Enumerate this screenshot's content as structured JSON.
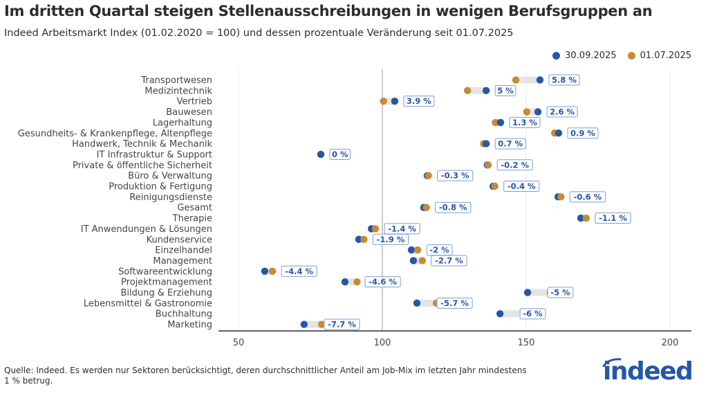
{
  "title": "Im dritten Quartal steigen Stellenausschreibungen in wenigen Berufsgruppen an",
  "subtitle": "Indeed Arbeitsmarkt Index (01.02.2020 = 100) und dessen prozentuale Veränderung seit 01.07.2025",
  "source": "Quelle: Indeed. Es werden nur Sektoren berücksichtigt, deren durchschnittlicher Anteil am Job-Mix im letzten Jahr mindestens 1 % betrug.",
  "logo_text": "indeed",
  "colors": {
    "current": "#2557a7",
    "previous": "#c78a35",
    "connector": "#e4e4e4",
    "refline": "#bdbdbd",
    "grid": "#e8e8e8",
    "axis": "#2d2d2d",
    "label_text": "#2557a7",
    "label_border": "#7d9ccf"
  },
  "chart_data": {
    "type": "dumbbell",
    "title": "Im dritten Quartal steigen Stellenausschreibungen in wenigen Berufsgruppen an",
    "subtitle": "Indeed Arbeitsmarkt Index (01.02.2020 = 100) und dessen prozentuale Veränderung seit 01.07.2025",
    "xlabel": "",
    "ylabel": "",
    "xlim": [
      40,
      208
    ],
    "xticks": [
      50,
      100,
      150,
      200
    ],
    "reference_line": 100,
    "legend_position": "top-right",
    "series": [
      {
        "name": "30.09.2025",
        "key": "current"
      },
      {
        "name": "01.07.2025",
        "key": "previous"
      }
    ],
    "categories": [
      "Transportwesen",
      "Medizintechnik",
      "Vertrieb",
      "Bauwesen",
      "Lagerhaltung",
      "Gesundheits- & Krankenpflege, Altenpflege",
      "Handwerk, Technik & Mechanik",
      "IT Infrastruktur & Support",
      "Private & öffentliche Sicherheit",
      "Büro & Verwaltung",
      "Produktion & Fertigung",
      "Reinigungsdienste",
      "Gesamt",
      "Therapie",
      "IT Anwendungen & Lösungen",
      "Kundenservice",
      "Einzelhandel",
      "Management",
      "Softwareentwicklung",
      "Projektmanagement",
      "Bildung & Erziehung",
      "Lebensmittel & Gastronomie",
      "Buchhaltung",
      "Marketing"
    ],
    "current": [
      154.8,
      136.1,
      104.3,
      154.1,
      141.1,
      161.3,
      136.1,
      78.6,
      136.5,
      115.6,
      138.5,
      161.1,
      114.4,
      169.0,
      96.2,
      91.8,
      110.1,
      110.8,
      59.1,
      87.0,
      150.5,
      112.0,
      140.9,
      72.8
    ],
    "previous": [
      146.4,
      129.6,
      100.4,
      150.2,
      139.3,
      159.9,
      135.2,
      78.6,
      136.8,
      116.0,
      139.1,
      162.1,
      115.3,
      170.9,
      97.6,
      93.6,
      112.3,
      113.9,
      61.8,
      91.2,
      158.4,
      118.8,
      149.9,
      78.9
    ],
    "change_labels": [
      "5.8 %",
      "5 %",
      "3.9 %",
      "2.6 %",
      "1.3 %",
      "0.9 %",
      "0.7 %",
      "0 %",
      "-0.2 %",
      "-0.3 %",
      "-0.4 %",
      "-0.6 %",
      "-0.8 %",
      "-1.1 %",
      "-1.4 %",
      "-1.9 %",
      "-2 %",
      "-2.7 %",
      "-4.4 %",
      "-4.6 %",
      "-5 %",
      "-5.7 %",
      "-6 %",
      "-7.7 %"
    ]
  }
}
